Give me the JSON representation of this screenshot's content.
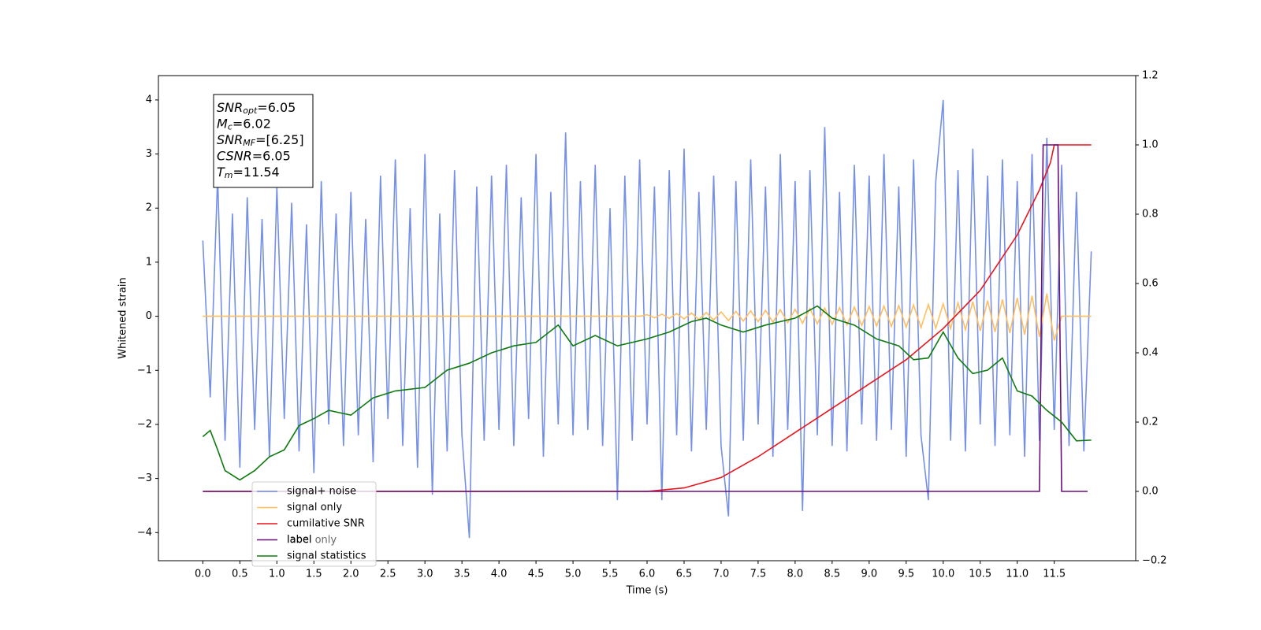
{
  "chart_data": {
    "type": "line",
    "xlabel": "Time (s)",
    "ylabel": "Whitened strain",
    "xlim": [
      -0.6,
      12.6
    ],
    "ylim": [
      -4.52,
      4.45
    ],
    "y2lim": [
      -0.2,
      1.2
    ],
    "xticks": [
      {
        "value": 0,
        "label": "0.0"
      },
      {
        "value": 0.5,
        "label": "0.5"
      },
      {
        "value": 1,
        "label": "1.0"
      },
      {
        "value": 1.5,
        "label": "1.5"
      },
      {
        "value": 2,
        "label": "2.0"
      },
      {
        "value": 2.5,
        "label": "2.5"
      },
      {
        "value": 3,
        "label": "3.0"
      },
      {
        "value": 3.5,
        "label": "3.5"
      },
      {
        "value": 4,
        "label": "4.0"
      },
      {
        "value": 4.5,
        "label": "4.5"
      },
      {
        "value": 5,
        "label": "5.0"
      },
      {
        "value": 5.5,
        "label": "5.5"
      },
      {
        "value": 6,
        "label": "6.0"
      },
      {
        "value": 6.5,
        "label": "6.5"
      },
      {
        "value": 7,
        "label": "7.0"
      },
      {
        "value": 7.5,
        "label": "7.5"
      },
      {
        "value": 8,
        "label": "8.0"
      },
      {
        "value": 8.5,
        "label": "8.5"
      },
      {
        "value": 9,
        "label": "9.0"
      },
      {
        "value": 9.5,
        "label": "9.5"
      },
      {
        "value": 10,
        "label": "10.0"
      },
      {
        "value": 10.5,
        "label": "10.5"
      },
      {
        "value": 11,
        "label": "11.0"
      },
      {
        "value": 11.5,
        "label": "11.5"
      }
    ],
    "yticks": [
      {
        "value": -4,
        "label": "−4"
      },
      {
        "value": -3,
        "label": "−3"
      },
      {
        "value": -2,
        "label": "−2"
      },
      {
        "value": -1,
        "label": "−1"
      },
      0,
      1,
      2,
      3,
      4
    ],
    "y2ticks": [
      {
        "value": -0.2,
        "label": "−0.2"
      },
      {
        "value": 0,
        "label": "0.0"
      },
      {
        "value": 0.2,
        "label": "0.2"
      },
      {
        "value": 0.4,
        "label": "0.4"
      },
      {
        "value": 0.6,
        "label": "0.6"
      },
      {
        "value": 0.8,
        "label": "0.8"
      },
      {
        "value": 1,
        "label": "1.0"
      },
      {
        "value": 1.2,
        "label": "1.2"
      }
    ],
    "annotations": [
      {
        "base": "SNR",
        "sub": "opt",
        "text": "=6.05"
      },
      {
        "base": "M",
        "sub": "c",
        "text": "=6.02"
      },
      {
        "base": "SNR",
        "sub": "MF",
        "text": "=[6.25]"
      },
      {
        "base": "CSNR",
        "text": "=6.05"
      },
      {
        "base": "T",
        "sub": "m",
        "text": "=11.54"
      }
    ],
    "legend_overlap_text": "label only",
    "x": [
      0,
      0.1,
      0.2,
      0.3,
      0.4,
      0.5,
      0.6,
      0.7,
      0.8,
      0.9,
      1,
      1.1,
      1.2,
      1.3,
      1.4,
      1.5,
      1.6,
      1.7,
      1.8,
      1.9,
      2,
      2.1,
      2.2,
      2.3,
      2.4,
      2.5,
      2.6,
      2.7,
      2.8,
      2.9,
      3,
      3.1,
      3.2,
      3.3,
      3.4,
      3.5,
      3.6,
      3.7,
      3.8,
      3.9,
      4,
      4.1,
      4.2,
      4.3,
      4.4,
      4.5,
      4.6,
      4.7,
      4.8,
      4.9,
      5,
      5.1,
      5.2,
      5.3,
      5.4,
      5.5,
      5.6,
      5.7,
      5.8,
      5.9,
      6,
      6.1,
      6.2,
      6.3,
      6.4,
      6.5,
      6.6,
      6.7,
      6.8,
      6.9,
      7,
      7.1,
      7.2,
      7.3,
      7.4,
      7.5,
      7.6,
      7.7,
      7.8,
      7.9,
      8,
      8.1,
      8.2,
      8.3,
      8.4,
      8.5,
      8.6,
      8.7,
      8.8,
      8.9,
      9,
      9.1,
      9.2,
      9.3,
      9.4,
      9.5,
      9.6,
      9.7,
      9.8,
      9.9,
      10,
      10.1,
      10.2,
      10.3,
      10.4,
      10.5,
      10.6,
      10.7,
      10.8,
      10.9,
      11,
      11.1,
      11.2,
      11.3,
      11.4,
      11.5,
      11.6,
      11.7,
      11.8,
      11.9,
      12
    ],
    "series": [
      {
        "name": "signal+ noise",
        "color": "#6f8ae6",
        "values": [
          1.4,
          -1.5,
          2.6,
          -2.3,
          1.9,
          -2.8,
          2.2,
          -2.1,
          1.8,
          -2.6,
          2.4,
          -1.9,
          2.1,
          -2.5,
          1.7,
          -2.9,
          2.5,
          -2.0,
          1.9,
          -2.4,
          2.3,
          -2.2,
          1.8,
          -2.7,
          2.6,
          -1.9,
          2.9,
          -2.4,
          2.0,
          -2.8,
          3.0,
          -3.3,
          1.9,
          -2.5,
          2.7,
          -2.2,
          -4.1,
          2.4,
          -2.3,
          2.6,
          -2.1,
          2.8,
          -2.4,
          2.2,
          -1.9,
          3.0,
          -2.6,
          2.3,
          -2.0,
          3.4,
          -2.2,
          2.5,
          -2.1,
          2.8,
          -2.4,
          2.0,
          -3.4,
          2.6,
          -2.3,
          2.9,
          -2.0,
          2.4,
          -3.4,
          2.7,
          -2.2,
          3.1,
          -2.5,
          2.3,
          -2.1,
          2.6,
          -2.4,
          -3.7,
          2.5,
          -2.3,
          2.9,
          -2.0,
          2.4,
          -2.6,
          3.0,
          -2.1,
          2.5,
          -3.6,
          2.7,
          -2.2,
          3.5,
          -2.4,
          2.3,
          -2.5,
          2.8,
          -2.0,
          2.6,
          -2.3,
          3.0,
          -2.1,
          2.4,
          -2.6,
          2.9,
          -2.2,
          -3.4,
          2.5,
          4.0,
          -2.3,
          2.7,
          -2.5,
          3.1,
          -2.0,
          2.6,
          -2.4,
          2.9,
          -2.2,
          2.5,
          -2.6,
          3.0,
          -2.3,
          3.3,
          -2.1,
          2.8,
          -2.4,
          2.3,
          -2.5,
          1.2
        ]
      },
      {
        "name": "signal only",
        "color": "#ffbf60",
        "values": [
          0,
          0,
          0,
          0,
          0,
          0,
          0,
          0,
          0,
          0,
          0,
          0,
          0,
          0,
          0,
          0,
          0,
          0,
          0,
          0,
          0,
          0,
          0,
          0,
          0,
          0,
          0,
          0,
          0,
          0,
          0,
          0,
          0,
          0,
          0,
          0,
          0,
          0,
          0,
          0,
          0,
          0,
          0,
          0,
          0,
          0,
          0,
          0,
          0,
          0,
          0,
          0,
          0,
          0,
          0,
          0,
          0,
          0,
          0,
          0,
          0.03,
          -0.03,
          0.04,
          -0.04,
          0.05,
          -0.05,
          0.06,
          -0.06,
          0.07,
          -0.07,
          0.08,
          -0.08,
          0.09,
          -0.09,
          0.1,
          -0.1,
          0.11,
          -0.11,
          0.12,
          -0.12,
          0.13,
          -0.13,
          0.14,
          -0.14,
          0.15,
          -0.15,
          0.16,
          -0.16,
          0.17,
          -0.17,
          0.18,
          -0.18,
          0.19,
          -0.19,
          0.2,
          -0.2,
          0.21,
          -0.21,
          0.22,
          -0.22,
          0.23,
          -0.23,
          0.25,
          -0.25,
          0.27,
          -0.27,
          0.29,
          -0.29,
          0.31,
          -0.31,
          0.34,
          -0.34,
          0.38,
          -0.38,
          0.42,
          -0.45,
          0,
          0,
          0,
          0,
          0
        ]
      },
      {
        "name": "cumilative SNR",
        "color": "#e8141c",
        "axis": "y2",
        "x": [
          0,
          6,
          6.5,
          7,
          7.5,
          8,
          8.5,
          9,
          9.5,
          10,
          10.5,
          11,
          11.3,
          11.45,
          11.5,
          12
        ],
        "values": [
          0,
          0,
          0.01,
          0.04,
          0.1,
          0.17,
          0.24,
          0.31,
          0.38,
          0.47,
          0.58,
          0.74,
          0.87,
          0.95,
          1,
          1
        ]
      },
      {
        "name": "label",
        "color": "#6a0f7a",
        "axis": "y2",
        "x": [
          0,
          11.3,
          11.35,
          11.55,
          11.6,
          11.95
        ],
        "values": [
          0,
          0,
          1,
          1,
          0,
          0
        ]
      },
      {
        "name": "signal statistics",
        "color": "#0f7a0f",
        "axis": "y2",
        "x": [
          0,
          0.1,
          0.2,
          0.3,
          0.5,
          0.7,
          0.9,
          1.1,
          1.3,
          1.5,
          1.7,
          2,
          2.3,
          2.6,
          3,
          3.3,
          3.6,
          3.9,
          4.2,
          4.5,
          4.8,
          5,
          5.3,
          5.6,
          6,
          6.3,
          6.6,
          6.8,
          7,
          7.3,
          7.6,
          8,
          8.3,
          8.5,
          8.8,
          9.1,
          9.4,
          9.6,
          9.8,
          10,
          10.2,
          10.4,
          10.6,
          10.8,
          11,
          11.2,
          11.4,
          11.6,
          11.8,
          12
        ],
        "values": [
          0.158,
          0.176,
          0.12,
          0.06,
          0.033,
          0.06,
          0.1,
          0.12,
          0.19,
          0.21,
          0.234,
          0.22,
          0.27,
          0.29,
          0.3,
          0.35,
          0.37,
          0.4,
          0.42,
          0.43,
          0.48,
          0.42,
          0.45,
          0.42,
          0.44,
          0.46,
          0.49,
          0.5,
          0.48,
          0.46,
          0.48,
          0.5,
          0.535,
          0.5,
          0.48,
          0.44,
          0.42,
          0.38,
          0.385,
          0.46,
          0.385,
          0.34,
          0.35,
          0.385,
          0.29,
          0.275,
          0.234,
          0.2,
          0.146,
          0.148
        ]
      }
    ]
  }
}
